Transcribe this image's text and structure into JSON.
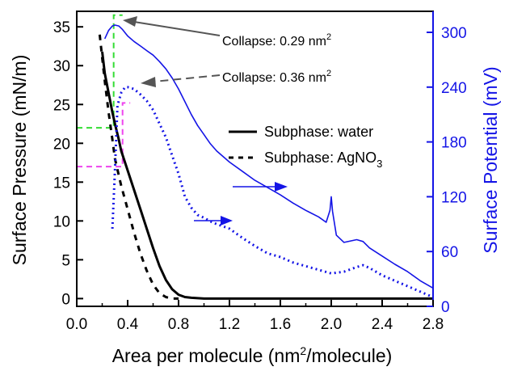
{
  "chart_data": {
    "type": "line",
    "xlabel": "Area per molecule (nm",
    "xlabel_sup": "2",
    "xlabel_end": "/molecule)",
    "ylabel_left": "Surface Pressure (mN/m)",
    "ylabel_right": "Surface Potential (mV)",
    "xlim": [
      0.0,
      2.8
    ],
    "ylim_left": [
      -1,
      37
    ],
    "ylim_right": [
      0,
      323
    ],
    "x_ticks": [
      "0.0",
      "0.4",
      "0.8",
      "1.2",
      "1.6",
      "2.0",
      "2.4",
      "2.8"
    ],
    "y_left_ticks": [
      "0",
      "5",
      "10",
      "15",
      "20",
      "25",
      "30",
      "35"
    ],
    "y_right_ticks": [
      "0",
      "60",
      "120",
      "180",
      "240",
      "300"
    ],
    "colors": {
      "axis_left": "#000000",
      "axis_right": "#1414e6",
      "green_guide": "#33dd33",
      "magenta_guide": "#ee44ee",
      "arrow_gray": "#555555"
    },
    "legend": [
      {
        "label": "Subphase: water",
        "style": "solid"
      },
      {
        "label": "Subphase: AgNO",
        "sub": "3",
        "style": "dashed"
      }
    ],
    "annotations": [
      {
        "text": "Collapse: 0.29 nm",
        "sup": "2",
        "arrow_to": [
          0.29,
          36.5
        ]
      },
      {
        "text": "Collapse: 0.36 nm",
        "sup": "2",
        "arrow_to": [
          0.36,
          25.2
        ]
      }
    ],
    "series": [
      {
        "axis": "left",
        "style": "solid",
        "color": "#000000",
        "x": [
          0.2,
          0.22,
          0.25,
          0.28,
          0.3,
          0.33,
          0.35,
          0.4,
          0.45,
          0.5,
          0.55,
          0.6,
          0.65,
          0.7,
          0.75,
          0.8,
          0.85,
          0.9,
          1.0,
          1.2,
          1.6,
          2.0,
          2.4,
          2.8
        ],
        "y": [
          31.8,
          29.0,
          26.5,
          24.0,
          22.5,
          20.5,
          19.0,
          16.5,
          14.0,
          11.5,
          9.0,
          6.5,
          4.2,
          2.4,
          1.2,
          0.5,
          0.2,
          0.1,
          0.0,
          0.0,
          0.0,
          0.0,
          0.0,
          0.0
        ]
      },
      {
        "axis": "left",
        "style": "dashed",
        "color": "#000000",
        "x": [
          0.18,
          0.2,
          0.22,
          0.25,
          0.28,
          0.3,
          0.35,
          0.4,
          0.45,
          0.5,
          0.55,
          0.6,
          0.65,
          0.7,
          0.75,
          0.8
        ],
        "y": [
          34.0,
          31.0,
          28.0,
          24.0,
          20.5,
          18.0,
          14.5,
          11.5,
          8.5,
          5.8,
          3.6,
          1.8,
          0.7,
          0.2,
          0.0,
          0.0
        ]
      },
      {
        "axis": "right",
        "style": "solid",
        "color": "#1414e6",
        "x": [
          0.22,
          0.25,
          0.28,
          0.3,
          0.33,
          0.36,
          0.4,
          0.45,
          0.5,
          0.55,
          0.6,
          0.65,
          0.7,
          0.75,
          0.8,
          0.85,
          0.9,
          0.95,
          1.0,
          1.05,
          1.1,
          1.2,
          1.3,
          1.4,
          1.5,
          1.6,
          1.7,
          1.8,
          1.9,
          1.96,
          1.99,
          2.0,
          2.01,
          2.04,
          2.1,
          2.2,
          2.25,
          2.3,
          2.4,
          2.5,
          2.6,
          2.7,
          2.8
        ],
        "y": [
          293,
          302,
          307,
          308,
          307,
          303,
          296,
          290,
          285,
          280,
          275,
          268,
          260,
          250,
          238,
          224,
          210,
          198,
          188,
          178,
          170,
          158,
          148,
          138,
          130,
          122,
          113,
          105,
          98,
          92,
          105,
          120,
          104,
          78,
          70,
          73,
          71,
          64,
          55,
          46,
          38,
          28,
          20
        ]
      },
      {
        "axis": "right",
        "style": "dotted",
        "color": "#1414e6",
        "x": [
          0.28,
          0.3,
          0.32,
          0.35,
          0.38,
          0.4,
          0.45,
          0.5,
          0.55,
          0.6,
          0.65,
          0.7,
          0.75,
          0.8,
          0.85,
          0.9,
          0.95,
          1.0,
          1.05,
          1.1,
          1.2,
          1.3,
          1.4,
          1.5,
          1.6,
          1.7,
          1.8,
          1.9,
          2.0,
          2.1,
          2.2,
          2.25,
          2.3,
          2.4,
          2.5,
          2.6,
          2.7,
          2.8
        ],
        "y": [
          85,
          150,
          220,
          234,
          240,
          240,
          238,
          232,
          225,
          215,
          200,
          185,
          165,
          145,
          120,
          108,
          100,
          97,
          93,
          90,
          85,
          75,
          66,
          58,
          54,
          48,
          44,
          40,
          36,
          38,
          43,
          45,
          42,
          34,
          28,
          22,
          16,
          10
        ]
      }
    ]
  }
}
